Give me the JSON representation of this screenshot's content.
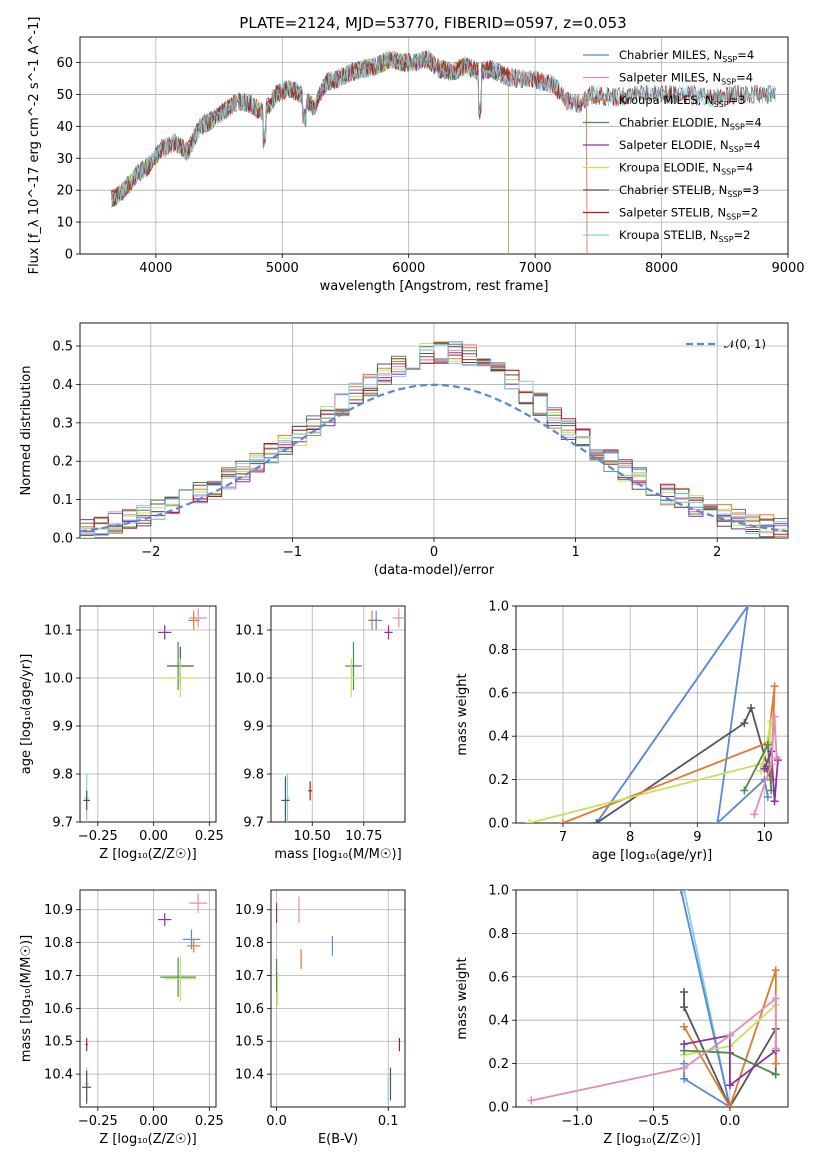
{
  "figure": {
    "title": "PLATE=2124, MJD=53770, FIBERID=0597, z=0.053"
  },
  "chart_data": [
    {
      "id": "spectrum",
      "type": "line",
      "title": "PLATE=2124, MJD=53770, FIBERID=0597, z=0.053",
      "xlabel": "wavelength [Angstrom, rest frame]",
      "ylabel": "Flux [f_λ 10^-17 erg cm^-2 s^-1 A^-1]",
      "xlim": [
        3400,
        9000
      ],
      "ylim": [
        0,
        68
      ],
      "xticks": [
        4000,
        5000,
        6000,
        7000,
        8000,
        9000
      ],
      "yticks": [
        0,
        10,
        20,
        30,
        40,
        50,
        60
      ],
      "grid": true,
      "legend": "top-right",
      "series": [
        {
          "label": "Chabrier MILES",
          "nssp": "4",
          "color": "#5b87d5",
          "end": 7410
        },
        {
          "label": "Salpeter MILES",
          "nssp": "4",
          "color": "#e58bb7",
          "end": 7410
        },
        {
          "label": "Kroupa MILES",
          "nssp": "3",
          "color": "#e07a2e",
          "end": 7410
        },
        {
          "label": "Chabrier ELODIE",
          "nssp": "4",
          "color": "#4c8a4f",
          "end": 6790
        },
        {
          "label": "Salpeter ELODIE",
          "nssp": "4",
          "color": "#8e2fa8",
          "end": 6790
        },
        {
          "label": "Kroupa ELODIE",
          "nssp": "4",
          "color": "#c9e05a",
          "end": 6790
        },
        {
          "label": "Chabrier STELIB",
          "nssp": "3",
          "color": "#555555",
          "end": 8900
        },
        {
          "label": "Salpeter STELIB",
          "nssp": "2",
          "color": "#b01f1f",
          "end": 8900
        },
        {
          "label": "Kroupa STELIB",
          "nssp": "2",
          "color": "#7fd3e0",
          "end": 8900
        }
      ],
      "sample_x": [
        3650,
        3750,
        3850,
        3950,
        4050,
        4150,
        4250,
        4350,
        4450,
        4550,
        4650,
        4750,
        4850,
        4950,
        5050,
        5150,
        5250,
        5350,
        5450,
        5550,
        5650,
        5750,
        5850,
        5950,
        6050,
        6150,
        6250,
        6350,
        6450,
        6550,
        6650,
        6750,
        6850,
        6950,
        7050,
        7150,
        7250,
        7350,
        7450,
        7600,
        7800,
        8000,
        8200,
        8400,
        8600,
        8800
      ],
      "sample_y": [
        17,
        20,
        25,
        28,
        33,
        35,
        32,
        40,
        42,
        45,
        48,
        47,
        44,
        50,
        52,
        50,
        46,
        54,
        55,
        57,
        58,
        59,
        61,
        60,
        60,
        61,
        58,
        57,
        59,
        57,
        58,
        56,
        55,
        55,
        54,
        53,
        48,
        47,
        50,
        49,
        50,
        50,
        50,
        49,
        50,
        50
      ]
    },
    {
      "id": "residuals",
      "type": "line",
      "xlabel": "(data-model)/error",
      "ylabel": "Normed distribution",
      "xlim": [
        -2.5,
        2.5
      ],
      "ylim": [
        0,
        0.56
      ],
      "xticks": [
        -2,
        -1,
        0,
        1,
        2
      ],
      "yticks": [
        0.0,
        0.1,
        0.2,
        0.3,
        0.4,
        0.5
      ],
      "grid": true,
      "legend": "top-right",
      "gaussian_label": "𝒩(0, 1)",
      "gaussian_color": "#5b87d5"
    },
    {
      "id": "age-vs-Z",
      "type": "scatter",
      "xlabel": "Z [log₁₀(Z/Z☉)]",
      "ylabel": "age  [log₁₀(age/yr)]",
      "xlim": [
        -0.33,
        0.28
      ],
      "ylim": [
        9.7,
        10.15
      ],
      "xticks": [
        -0.25,
        0.0,
        0.25
      ],
      "yticks": [
        9.7,
        9.8,
        9.9,
        10.0,
        10.1
      ],
      "grid": true,
      "points": [
        {
          "color": "#8e2fa8",
          "x": 0.05,
          "y": 10.095,
          "ex": 0.03,
          "ey": 0.015
        },
        {
          "color": "#e58bb7",
          "x": 0.2,
          "y": 10.125,
          "ex": 0.04,
          "ey": 0.02
        },
        {
          "color": "#e07a2e",
          "x": 0.18,
          "y": 10.12,
          "ex": 0.025,
          "ey": 0.02
        },
        {
          "color": "#555555",
          "x": 0.12,
          "y": 10.025,
          "ex": 0.06,
          "ey": 0.04
        },
        {
          "color": "#4c8a4f",
          "x": 0.11,
          "y": 10.025,
          "ex": 0.05,
          "ey": 0.05
        },
        {
          "color": "#c9e05a",
          "x": 0.12,
          "y": 10.0,
          "ex": 0.08,
          "ey": 0.04
        },
        {
          "color": "#7fd3e0",
          "x": -0.3,
          "y": 9.75,
          "ex": 0.01,
          "ey": 0.05
        },
        {
          "color": "#555555",
          "x": -0.3,
          "y": 9.745,
          "ex": 0.015,
          "ey": 0.02
        }
      ]
    },
    {
      "id": "age-vs-mass",
      "type": "scatter",
      "xlabel": "mass [log₁₀(M/M☉)]",
      "xlim": [
        10.3,
        10.95
      ],
      "ylim": [
        9.7,
        10.15
      ],
      "xticks": [
        10.5,
        10.75
      ],
      "yticks": [
        9.7,
        9.8,
        9.9,
        10.0,
        10.1
      ],
      "grid": true,
      "points": [
        {
          "color": "#8e2fa8",
          "x": 10.87,
          "y": 10.095,
          "ex": 0.02,
          "ey": 0.015
        },
        {
          "color": "#e58bb7",
          "x": 10.92,
          "y": 10.125,
          "ex": 0.03,
          "ey": 0.02
        },
        {
          "color": "#e07a2e",
          "x": 10.79,
          "y": 10.12,
          "ex": 0.02,
          "ey": 0.02
        },
        {
          "color": "#5b87d5",
          "x": 10.81,
          "y": 10.12,
          "ex": 0.03,
          "ey": 0.02
        },
        {
          "color": "#4c8a4f",
          "x": 10.7,
          "y": 10.025,
          "ex": 0.04,
          "ey": 0.05
        },
        {
          "color": "#c9e05a",
          "x": 10.69,
          "y": 10.0,
          "ex": 0.03,
          "ey": 0.04
        },
        {
          "color": "#7fd3e0",
          "x": 10.38,
          "y": 9.75,
          "ex": 0.01,
          "ey": 0.05
        },
        {
          "color": "#555555",
          "x": 10.37,
          "y": 9.745,
          "ex": 0.02,
          "ey": 0.05
        },
        {
          "color": "#b01f1f",
          "x": 10.49,
          "y": 9.765,
          "ex": 0.01,
          "ey": 0.02
        }
      ]
    },
    {
      "id": "weight-vs-age",
      "type": "line",
      "xlabel": "age  [log₁₀(age/yr)]",
      "ylabel": "mass weight",
      "xlim": [
        6.3,
        10.35
      ],
      "ylim": [
        0,
        1
      ],
      "xticks": [
        7,
        8,
        9,
        10
      ],
      "yticks": [
        0.0,
        0.2,
        0.4,
        0.6,
        0.8,
        1.0
      ],
      "grid": true,
      "series": [
        {
          "color": "#7fd3e0",
          "points": [
            [
              7.5,
              0.0
            ],
            [
              9.75,
              1.0
            ]
          ]
        },
        {
          "color": "#5b87d5",
          "points": [
            [
              7.5,
              0.0
            ],
            [
              9.75,
              1.0
            ],
            [
              9.3,
              0.0
            ],
            [
              10.0,
              0.2
            ],
            [
              10.05,
              0.12
            ]
          ]
        },
        {
          "color": "#555555",
          "points": [
            [
              7.5,
              0.0
            ],
            [
              9.7,
              0.46
            ],
            [
              9.8,
              0.53
            ],
            [
              10.1,
              0.2
            ],
            [
              10.0,
              0.26
            ]
          ]
        },
        {
          "color": "#e07a2e",
          "points": [
            [
              7.0,
              0.0
            ],
            [
              10.05,
              0.37
            ],
            [
              10.15,
              0.63
            ],
            [
              10.1,
              0.2
            ]
          ]
        },
        {
          "color": "#c9e05a",
          "points": [
            [
              6.5,
              0.0
            ],
            [
              10.05,
              0.28
            ],
            [
              10.1,
              0.47
            ],
            [
              9.95,
              0.24
            ]
          ]
        },
        {
          "color": "#4c8a4f",
          "points": [
            [
              9.7,
              0.15
            ],
            [
              10.05,
              0.36
            ],
            [
              10.1,
              0.15
            ]
          ]
        },
        {
          "color": "#8e2fa8",
          "points": [
            [
              10.0,
              0.25
            ],
            [
              10.1,
              0.33
            ],
            [
              10.15,
              0.1
            ],
            [
              10.2,
              0.29
            ]
          ]
        },
        {
          "color": "#e58bb7",
          "points": [
            [
              9.85,
              0.04
            ],
            [
              10.1,
              0.27
            ],
            [
              10.15,
              0.49
            ],
            [
              10.18,
              0.3
            ]
          ]
        }
      ]
    },
    {
      "id": "mass-vs-Z",
      "type": "scatter",
      "xlabel": "Z [log₁₀(Z/Z☉)]",
      "ylabel": "mass [log₁₀(M/M☉)]",
      "xlim": [
        -0.33,
        0.28
      ],
      "ylim": [
        10.3,
        10.96
      ],
      "xticks": [
        -0.25,
        0.0,
        0.25
      ],
      "yticks": [
        10.4,
        10.5,
        10.6,
        10.7,
        10.8,
        10.9
      ],
      "grid": true,
      "points": [
        {
          "color": "#8e2fa8",
          "x": 0.05,
          "y": 10.87,
          "ex": 0.03,
          "ey": 0.02
        },
        {
          "color": "#e58bb7",
          "x": 0.2,
          "y": 10.92,
          "ex": 0.04,
          "ey": 0.03
        },
        {
          "color": "#5b87d5",
          "x": 0.17,
          "y": 10.81,
          "ex": 0.04,
          "ey": 0.03
        },
        {
          "color": "#e07a2e",
          "x": 0.18,
          "y": 10.79,
          "ex": 0.03,
          "ey": 0.02
        },
        {
          "color": "#4c8a4f",
          "x": 0.11,
          "y": 10.695,
          "ex": 0.08,
          "ey": 0.06
        },
        {
          "color": "#c9e05a",
          "x": 0.12,
          "y": 10.69,
          "ex": 0.07,
          "ey": 0.07
        },
        {
          "color": "#b01f1f",
          "x": -0.3,
          "y": 10.49,
          "ex": 0.005,
          "ey": 0.02
        },
        {
          "color": "#7fd3e0",
          "x": -0.3,
          "y": 10.37,
          "ex": 0.01,
          "ey": 0.05
        },
        {
          "color": "#555555",
          "x": -0.3,
          "y": 10.36,
          "ex": 0.02,
          "ey": 0.05
        }
      ]
    },
    {
      "id": "mass-vs-ebv",
      "type": "scatter",
      "xlabel": "E(B-V)",
      "xlim": [
        -0.005,
        0.115
      ],
      "ylim": [
        10.3,
        10.96
      ],
      "xticks": [
        0.0,
        0.1
      ],
      "yticks": [
        10.4,
        10.5,
        10.6,
        10.7,
        10.8,
        10.9
      ],
      "grid": true,
      "points": [
        {
          "color": "#8e2fa8",
          "x": 0.0,
          "y": 10.89,
          "ex": 0.0,
          "ey": 0.03
        },
        {
          "color": "#e58bb7",
          "x": 0.02,
          "y": 10.9,
          "ex": 0.0,
          "ey": 0.04
        },
        {
          "color": "#5b87d5",
          "x": 0.05,
          "y": 10.79,
          "ex": 0.0,
          "ey": 0.03
        },
        {
          "color": "#e07a2e",
          "x": 0.022,
          "y": 10.75,
          "ex": 0.0,
          "ey": 0.03
        },
        {
          "color": "#4c8a4f",
          "x": 0.0,
          "y": 10.7,
          "ex": 0.0,
          "ey": 0.05
        },
        {
          "color": "#c9e05a",
          "x": 0.001,
          "y": 10.66,
          "ex": 0.0,
          "ey": 0.05
        },
        {
          "color": "#b01f1f",
          "x": 0.11,
          "y": 10.49,
          "ex": 0.0,
          "ey": 0.02
        },
        {
          "color": "#555555",
          "x": 0.102,
          "y": 10.37,
          "ex": 0.0,
          "ey": 0.05
        },
        {
          "color": "#7fd3e0",
          "x": 0.1,
          "y": 10.35,
          "ex": 0.0,
          "ey": 0.04
        }
      ]
    },
    {
      "id": "weight-vs-Z",
      "type": "line",
      "xlabel": "Z [log₁₀(Z/Z☉)]",
      "ylabel": "mass weight",
      "xlim": [
        -1.4,
        0.38
      ],
      "ylim": [
        0,
        1
      ],
      "xticks": [
        -1.0,
        -0.5,
        0.0
      ],
      "yticks": [
        0.0,
        0.2,
        0.4,
        0.6,
        0.8,
        1.0
      ],
      "grid": true,
      "series": [
        {
          "color": "#7fd3e0",
          "points": [
            [
              -0.3,
              1.0
            ],
            [
              0.0,
              0.0
            ]
          ]
        },
        {
          "color": "#5b87d5",
          "points": [
            [
              -0.32,
              1.0
            ],
            [
              0.0,
              0.0
            ],
            [
              -0.3,
              0.13
            ],
            [
              -0.3,
              0.2
            ]
          ]
        },
        {
          "color": "#555555",
          "points": [
            [
              -0.3,
              0.53
            ],
            [
              -0.3,
              0.46
            ],
            [
              0.0,
              0.0
            ],
            [
              0.3,
              0.36
            ],
            [
              0.3,
              0.15
            ]
          ]
        },
        {
          "color": "#e07a2e",
          "points": [
            [
              -0.3,
              0.37
            ],
            [
              0.0,
              0.0
            ],
            [
              0.3,
              0.63
            ],
            [
              0.3,
              0.2
            ]
          ]
        },
        {
          "color": "#c9e05a",
          "points": [
            [
              -0.3,
              0.24
            ],
            [
              0.0,
              0.28
            ],
            [
              0.3,
              0.47
            ]
          ]
        },
        {
          "color": "#4c8a4f",
          "points": [
            [
              -0.3,
              0.26
            ],
            [
              0.0,
              0.25
            ],
            [
              0.3,
              0.15
            ]
          ]
        },
        {
          "color": "#8e2fa8",
          "points": [
            [
              -0.3,
              0.29
            ],
            [
              0.0,
              0.33
            ],
            [
              0.0,
              0.1
            ],
            [
              0.3,
              0.26
            ]
          ]
        },
        {
          "color": "#e58bb7",
          "points": [
            [
              -1.3,
              0.03
            ],
            [
              -0.3,
              0.18
            ],
            [
              0.0,
              0.33
            ],
            [
              0.3,
              0.5
            ],
            [
              0.3,
              0.27
            ]
          ]
        }
      ]
    }
  ]
}
